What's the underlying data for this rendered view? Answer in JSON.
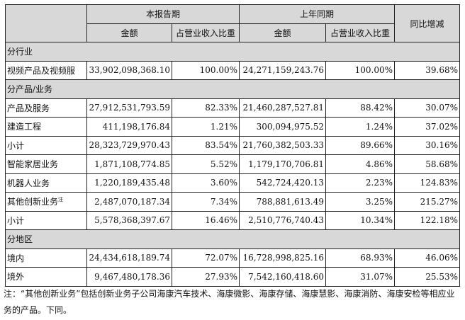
{
  "header": {
    "current_period": "本报告期",
    "prior_period": "上年同期",
    "yoy_change": "同比增减",
    "amount": "金额",
    "revenue_share": "占营业收入比重"
  },
  "sections": [
    {
      "title": "分行业",
      "rows": [
        {
          "label": "视频产品及视频服",
          "cur_amount": "33,902,098,368.10",
          "cur_share": "100.00%",
          "prev_amount": "24,271,159,243.76",
          "prev_share": "100.00%",
          "change": "39.68%"
        }
      ]
    },
    {
      "title": "分产品/业务",
      "rows": [
        {
          "label": "产品及服务",
          "cur_amount": "27,912,531,793.59",
          "cur_share": "82.33%",
          "prev_amount": "21,460,287,527.81",
          "prev_share": "88.42%",
          "change": "30.07%"
        },
        {
          "label": "建造工程",
          "cur_amount": "411,198,176.84",
          "cur_share": "1.21%",
          "prev_amount": "300,094,975.52",
          "prev_share": "1.24%",
          "change": "37.02%"
        },
        {
          "label": "小计",
          "cur_amount": "28,323,729,970.43",
          "cur_share": "83.54%",
          "prev_amount": "21,760,382,503.33",
          "prev_share": "89.66%",
          "change": "30.16%"
        },
        {
          "label": "智能家居业务",
          "cur_amount": "1,871,108,774.85",
          "cur_share": "5.52%",
          "prev_amount": "1,179,170,706.81",
          "prev_share": "4.86%",
          "change": "58.68%"
        },
        {
          "label": "机器人业务",
          "cur_amount": "1,220,189,435.48",
          "cur_share": "3.60%",
          "prev_amount": "542,724,420.13",
          "prev_share": "2.23%",
          "change": "124.83%"
        },
        {
          "label": "其他创新业务",
          "sup": "注",
          "cur_amount": "2,487,070,187.34",
          "cur_share": "7.34%",
          "prev_amount": "788,881,613.49",
          "prev_share": "3.25%",
          "change": "215.27%"
        },
        {
          "label": "小计",
          "cur_amount": "5,578,368,397.67",
          "cur_share": "16.46%",
          "prev_amount": "2,510,776,740.43",
          "prev_share": "10.34%",
          "change": "122.18%"
        }
      ]
    },
    {
      "title": "分地区",
      "rows": [
        {
          "label": "境内",
          "cur_amount": "24,434,618,189.74",
          "cur_share": "72.07%",
          "prev_amount": "16,728,998,825.16",
          "prev_share": "68.93%",
          "change": "46.06%"
        },
        {
          "label": "境外",
          "cur_amount": "9,467,480,178.36",
          "cur_share": "27.93%",
          "prev_amount": "7,542,160,418.60",
          "prev_share": "31.07%",
          "change": "25.53%"
        }
      ]
    }
  ],
  "footnote": "注：“其他创新业务”包括创新业务子公司海康汽车技术、海康微影、海康存储、海康慧影、海康消防、海康安检等相应业务的产品。下同。"
}
